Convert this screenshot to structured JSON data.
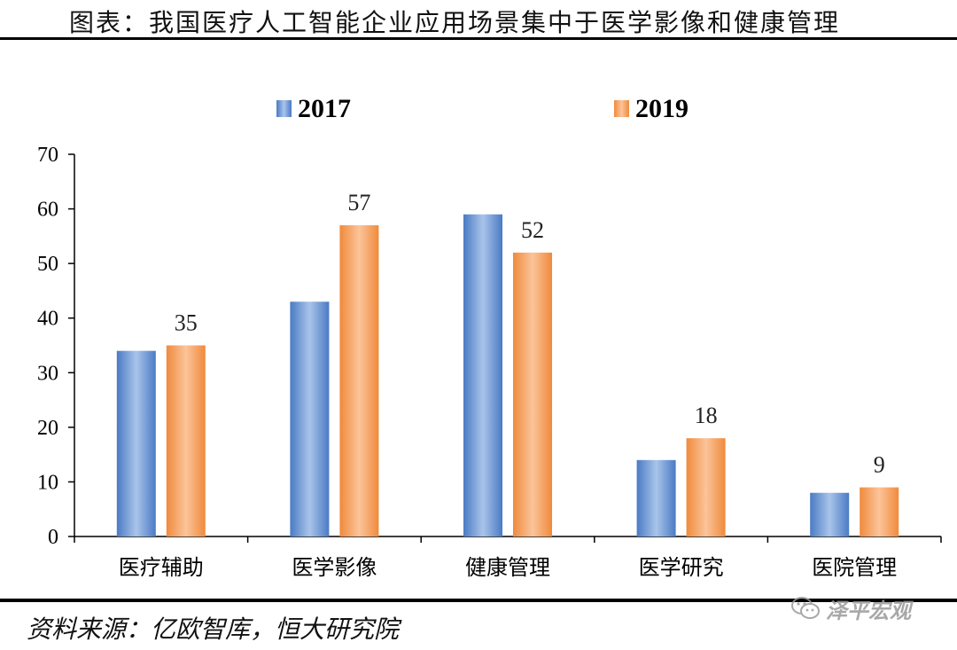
{
  "header": {
    "title": "图表：我国医疗人工智能企业应用场景集中于医学影像和健康管理"
  },
  "footer": {
    "source": "资料来源：亿欧智库，恒大研究院",
    "watermark": "泽平宏观"
  },
  "colors": {
    "series_2017": "#4a7bc4",
    "series_2017_light": "#a9c4ea",
    "series_2019": "#f08a3c",
    "series_2019_light": "#fbc49a",
    "axis": "#000000"
  },
  "chart_data": {
    "type": "bar",
    "title": "",
    "categories": [
      "医疗辅助",
      "医学影像",
      "健康管理",
      "医学研究",
      "医院管理"
    ],
    "series": [
      {
        "name": "2017",
        "values": [
          34,
          43,
          59,
          14,
          8
        ],
        "show_labels": false
      },
      {
        "name": "2019",
        "values": [
          35,
          57,
          52,
          18,
          9
        ],
        "show_labels": true
      }
    ],
    "ylim": [
      0,
      70
    ],
    "yticks": [
      0,
      10,
      20,
      30,
      40,
      50,
      60,
      70
    ],
    "xlabel": "",
    "ylabel": "",
    "legend": "top-center",
    "grid": false
  }
}
